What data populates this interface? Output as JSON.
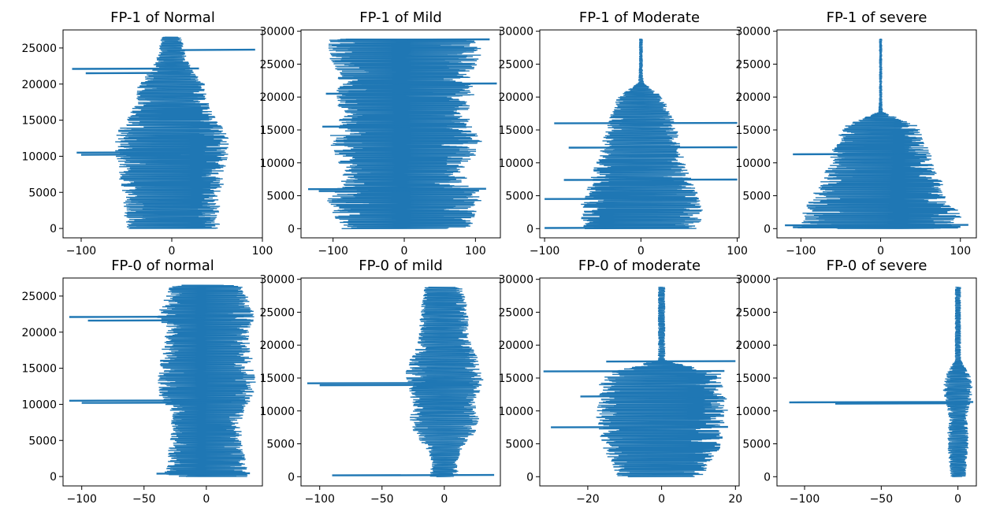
{
  "chart_data": [
    {
      "type": "line",
      "title": "FP-1 of Normal",
      "xlim": [
        -120,
        100
      ],
      "ylim": [
        -1300,
        27500
      ],
      "xticks": [
        -100,
        0,
        100
      ],
      "yticks": [
        0,
        5000,
        10000,
        15000,
        20000,
        25000
      ],
      "y_extent": 26500,
      "envelope_widths": [
        55,
        52,
        56,
        58,
        60,
        64,
        62,
        48,
        40,
        38,
        22,
        15,
        12
      ],
      "spikes": [
        {
          "y": 24700,
          "min": -5,
          "max": 92
        },
        {
          "y": 22100,
          "min": -110,
          "max": 30
        },
        {
          "y": 21500,
          "min": -95,
          "max": 8
        },
        {
          "y": 10500,
          "min": -105,
          "max": 20
        },
        {
          "y": 10200,
          "min": -100,
          "max": 10
        }
      ],
      "color": "#1f77b4"
    },
    {
      "type": "line",
      "title": "FP-1 of Mild",
      "xlim": [
        -145,
        135
      ],
      "ylim": [
        -1400,
        30200
      ],
      "xticks": [
        -100,
        0,
        100
      ],
      "yticks": [
        0,
        5000,
        10000,
        15000,
        20000,
        25000,
        30000
      ],
      "y_extent": 28800,
      "envelope_widths": [
        95,
        100,
        110,
        92,
        85,
        100,
        110,
        95,
        90,
        100,
        95,
        100,
        110,
        105
      ],
      "spikes": [
        {
          "y": 28700,
          "min": -90,
          "max": 120
        },
        {
          "y": 22000,
          "min": -60,
          "max": 130
        },
        {
          "y": 20500,
          "min": -110,
          "max": 40
        },
        {
          "y": 15500,
          "min": -115,
          "max": 60
        },
        {
          "y": 6000,
          "min": -135,
          "max": 115
        },
        {
          "y": 5700,
          "min": -120,
          "max": 105
        }
      ],
      "color": "#1f77b4"
    },
    {
      "type": "line",
      "title": "FP-1 of Moderate",
      "xlim": [
        -105,
        102
      ],
      "ylim": [
        -1400,
        30200
      ],
      "xticks": [
        -100,
        0,
        100
      ],
      "yticks": [
        0,
        5000,
        10000,
        15000,
        20000,
        25000,
        30000
      ],
      "y_extent": 28800,
      "envelope_widths": [
        60,
        65,
        62,
        55,
        50,
        45,
        40,
        38,
        30,
        25,
        3,
        2,
        2,
        2
      ],
      "spikes": [
        {
          "y": 16000,
          "min": -90,
          "max": 100
        },
        {
          "y": 12300,
          "min": -75,
          "max": 100
        },
        {
          "y": 7400,
          "min": -80,
          "max": 100
        },
        {
          "y": 4500,
          "min": -100,
          "max": 60
        },
        {
          "y": 100,
          "min": -100,
          "max": 50
        }
      ],
      "color": "#1f77b4"
    },
    {
      "type": "line",
      "title": "FP-1 of severe",
      "xlim": [
        -130,
        120
      ],
      "ylim": [
        -1400,
        30200
      ],
      "xticks": [
        -100,
        0,
        100
      ],
      "yticks": [
        0,
        5000,
        10000,
        15000,
        20000,
        25000,
        30000
      ],
      "y_extent": 28800,
      "envelope_widths": [
        110,
        100,
        90,
        80,
        70,
        65,
        55,
        50,
        3,
        2,
        2,
        2,
        2,
        2
      ],
      "spikes": [
        {
          "y": 11300,
          "min": -110,
          "max": 40
        },
        {
          "y": 500,
          "min": -120,
          "max": 110
        },
        {
          "y": 200,
          "min": -110,
          "max": 100
        }
      ],
      "color": "#1f77b4"
    },
    {
      "type": "line",
      "title": "FP-0 of normal",
      "xlim": [
        -115,
        45
      ],
      "ylim": [
        -1300,
        27500
      ],
      "xticks": [
        -100,
        -50,
        0
      ],
      "yticks": [
        0,
        5000,
        10000,
        15000,
        20000,
        25000
      ],
      "y_extent": 26500,
      "envelope_widths": [
        35,
        32,
        30,
        28,
        30,
        38,
        40,
        38,
        36,
        34,
        40,
        35,
        30
      ],
      "spikes": [
        {
          "y": 22100,
          "min": -110,
          "max": 30
        },
        {
          "y": 21600,
          "min": -95,
          "max": 20
        },
        {
          "y": 10500,
          "min": -110,
          "max": 25
        },
        {
          "y": 10200,
          "min": -100,
          "max": 20
        },
        {
          "y": 400,
          "min": -40,
          "max": 35
        }
      ],
      "color": "#1f77b4"
    },
    {
      "type": "line",
      "title": "FP-0 of mild",
      "xlim": [
        -115,
        45
      ],
      "ylim": [
        -1400,
        30200
      ],
      "xticks": [
        -100,
        -50,
        0
      ],
      "yticks": [
        0,
        5000,
        10000,
        15000,
        20000,
        25000,
        30000
      ],
      "y_extent": 28800,
      "envelope_widths": [
        12,
        10,
        15,
        25,
        28,
        25,
        30,
        32,
        28,
        22,
        20,
        20,
        18,
        16
      ],
      "spikes": [
        {
          "y": 14200,
          "min": -110,
          "max": 20
        },
        {
          "y": 13900,
          "min": -100,
          "max": 15
        },
        {
          "y": 200,
          "min": -90,
          "max": 40
        }
      ],
      "color": "#1f77b4"
    },
    {
      "type": "line",
      "title": "FP-0 of moderate",
      "xlim": [
        -33,
        21
      ],
      "ylim": [
        -1400,
        30200
      ],
      "xticks": [
        -20,
        0,
        20
      ],
      "yticks": [
        0,
        5000,
        10000,
        15000,
        20000,
        25000,
        30000
      ],
      "y_extent": 28800,
      "envelope_widths": [
        12,
        14,
        16,
        17,
        18,
        18,
        17,
        17,
        1,
        1,
        1,
        1,
        1,
        1
      ],
      "spikes": [
        {
          "y": 16000,
          "min": -32,
          "max": 17
        },
        {
          "y": 12200,
          "min": -22,
          "max": 15
        },
        {
          "y": 7500,
          "min": -30,
          "max": 18
        },
        {
          "y": 17500,
          "min": -15,
          "max": 20
        }
      ],
      "color": "#1f77b4"
    },
    {
      "type": "line",
      "title": "FP-0 of severe",
      "xlim": [
        -118,
        12
      ],
      "ylim": [
        -1400,
        30200
      ],
      "xticks": [
        -100,
        -50,
        0
      ],
      "yticks": [
        0,
        5000,
        10000,
        15000,
        20000,
        25000,
        30000
      ],
      "y_extent": 28800,
      "envelope_widths": [
        5,
        6,
        7,
        7,
        6,
        8,
        10,
        8,
        2,
        2,
        2,
        2,
        2,
        2
      ],
      "spikes": [
        {
          "y": 11300,
          "min": -110,
          "max": 10
        },
        {
          "y": 11100,
          "min": -80,
          "max": 8
        }
      ],
      "color": "#1f77b4"
    }
  ]
}
